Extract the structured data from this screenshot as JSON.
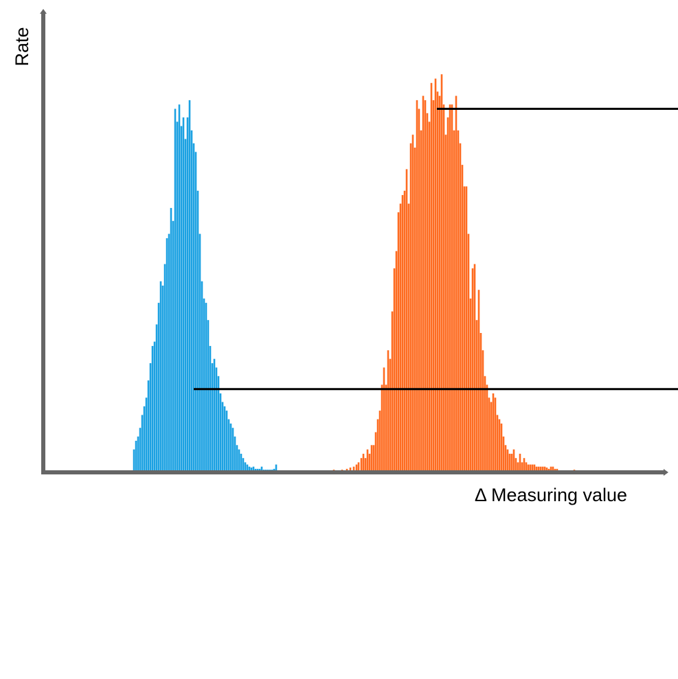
{
  "chart_data": {
    "type": "bar",
    "title": "",
    "xlabel": "Δ Measuring value",
    "ylabel": "Rate",
    "x_ticks_shown": false,
    "y_ticks_shown": false,
    "grid": false,
    "legend": "none",
    "ylim": [
      0,
      100
    ],
    "series": [
      {
        "color": "#1ba1e2",
        "x": [
          195,
          198,
          201,
          204,
          207,
          210,
          213,
          216,
          219,
          222,
          225,
          228,
          231,
          234,
          237,
          240,
          243,
          246,
          249,
          252,
          255,
          258,
          261,
          264,
          267,
          270,
          273,
          276,
          279,
          282,
          285,
          288,
          291,
          294,
          297,
          300,
          303,
          306,
          309,
          312,
          315,
          318,
          321,
          324,
          327,
          330,
          333,
          336,
          339,
          342,
          345,
          348,
          351,
          354,
          357,
          360,
          363,
          366,
          369,
          372,
          375,
          378,
          381,
          384,
          387,
          390,
          393,
          396,
          399,
          402
        ],
        "values": [
          5,
          7,
          8,
          10,
          13,
          15,
          17,
          21,
          25,
          29,
          30,
          34,
          39,
          44,
          43,
          48,
          54,
          55,
          61,
          58,
          84,
          81,
          85,
          80,
          82,
          77,
          82,
          86,
          79,
          76,
          74,
          65,
          55,
          44,
          40,
          39,
          35,
          29,
          25,
          26,
          24,
          22,
          18,
          16,
          15,
          14,
          12,
          11,
          10,
          8,
          6,
          5,
          4,
          3,
          2,
          1.5,
          1,
          0.8,
          1,
          0.5,
          0.5,
          0.5,
          1,
          0.3,
          0.3,
          0.3,
          0.3,
          0.3,
          0.5,
          1.5
        ]
      },
      {
        "color": "#fe6b20",
        "x": [
          486,
          498,
          505,
          510,
          515,
          519,
          522,
          526,
          529,
          532,
          535,
          538,
          541,
          544,
          547,
          550,
          553,
          556,
          559,
          562,
          565,
          568,
          571,
          574,
          577,
          580,
          583,
          586,
          589,
          592,
          595,
          598,
          601,
          604,
          607,
          610,
          613,
          616,
          619,
          622,
          625,
          628,
          631,
          634,
          637,
          640,
          643,
          646,
          649,
          652,
          655,
          658,
          661,
          664,
          667,
          670,
          673,
          676,
          679,
          682,
          685,
          688,
          691,
          694,
          697,
          700,
          703,
          706,
          709,
          712,
          715,
          718,
          721,
          724,
          727,
          730,
          733,
          736,
          739,
          742,
          745,
          748,
          751,
          754,
          757,
          760,
          763,
          766,
          769,
          772,
          775,
          778,
          781,
          784,
          787,
          790,
          793,
          796,
          799,
          802,
          805,
          808,
          811,
          836
        ],
        "values": [
          0.3,
          0.3,
          0.5,
          0.8,
          1,
          1.5,
          2,
          3,
          4,
          3,
          5,
          4,
          6,
          6,
          9,
          12,
          14,
          20,
          24,
          20,
          28,
          26,
          37,
          47,
          51,
          60,
          62,
          64,
          65,
          70,
          62,
          76,
          78,
          75,
          86,
          84,
          79,
          87,
          86,
          83,
          81,
          90,
          86,
          91,
          88,
          87,
          92,
          85,
          78,
          82,
          85,
          85,
          79,
          87,
          79,
          76,
          71,
          66,
          66,
          55,
          40,
          47,
          48,
          35,
          42,
          32,
          28,
          22,
          20,
          17,
          16,
          18,
          17,
          13,
          12,
          11,
          8,
          6,
          5,
          4,
          4,
          5,
          3,
          2,
          4,
          2,
          3,
          2,
          1.5,
          1.5,
          1.5,
          1.5,
          1,
          1,
          1,
          1,
          1,
          0.8,
          0.5,
          1,
          1,
          0.5,
          0.5,
          0.3
        ]
      }
    ],
    "annotations": [
      {
        "type": "hline",
        "y": 84,
        "x_start": 636
      },
      {
        "type": "hline",
        "y": 19,
        "x_start": 282
      }
    ]
  }
}
